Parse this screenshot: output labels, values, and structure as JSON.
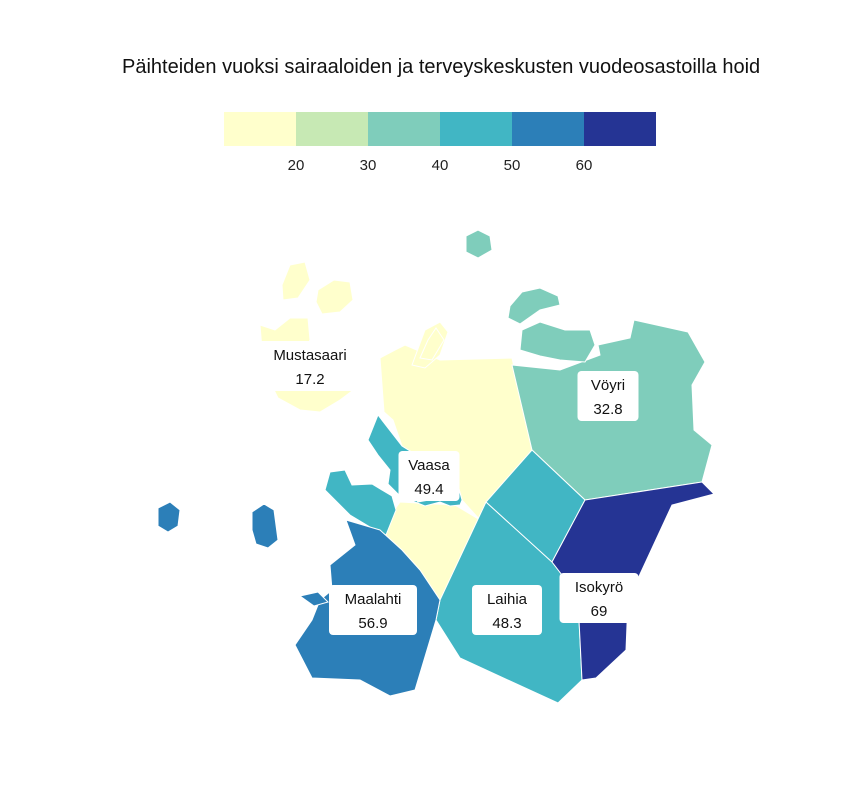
{
  "title": "Päihteiden vuoksi sairaaloiden ja terveyskeskusten vuodeosastoilla hoid",
  "legend": {
    "colors": [
      "#ffffcc",
      "#c7e9b4",
      "#7fcdbb",
      "#41b6c4",
      "#2c7fb8",
      "#253494"
    ],
    "ticks": [
      "20",
      "30",
      "40",
      "50",
      "60"
    ]
  },
  "chart_data": {
    "type": "choropleth",
    "regions": [
      {
        "name": "Mustasaari",
        "value": 17.2,
        "label": "17.2",
        "color": "#ffffcc"
      },
      {
        "name": "Vöyri",
        "value": 32.8,
        "label": "32.8",
        "color": "#7fcdbb"
      },
      {
        "name": "Vaasa",
        "value": 49.4,
        "label": "49.4",
        "color": "#41b6c4"
      },
      {
        "name": "Maalahti",
        "value": 56.9,
        "label": "56.9",
        "color": "#2c7fb8"
      },
      {
        "name": "Laihia",
        "value": 48.3,
        "label": "48.3",
        "color": "#41b6c4"
      },
      {
        "name": "Isokyrö",
        "value": 69,
        "label": "69",
        "color": "#253494"
      }
    ]
  }
}
